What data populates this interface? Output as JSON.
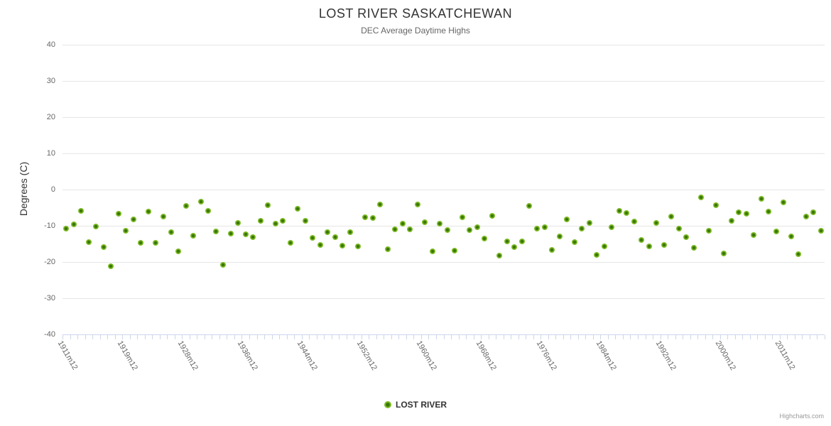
{
  "credit": "Highcharts.com",
  "colors": {
    "marker_outer": "#7ebc27",
    "marker_core": "#3a7606",
    "gridline": "#e6e6e6",
    "axis_line": "#ccd6eb",
    "title_text": "#333333",
    "label_text": "#666666",
    "credit_text": "#999999",
    "background": "#ffffff"
  },
  "chart_data": {
    "type": "scatter",
    "title": "LOST RIVER SASKATCHEWAN",
    "subtitle": "DEC Average Daytime Highs",
    "xlabel": "",
    "ylabel": "Degrees (C)",
    "ylim": [
      -40,
      40
    ],
    "y_ticks": [
      40,
      30,
      20,
      10,
      0,
      -10,
      -20,
      -30,
      -40
    ],
    "grid": true,
    "legend_position": "bottom-center",
    "x_tick_labels": [
      {
        "index": 0,
        "label": "1911m12"
      },
      {
        "index": 8,
        "label": "1919m12"
      },
      {
        "index": 16,
        "label": "1928m12"
      },
      {
        "index": 24,
        "label": "1936m12"
      },
      {
        "index": 32,
        "label": "1944m12"
      },
      {
        "index": 40,
        "label": "1952m12"
      },
      {
        "index": 48,
        "label": "1960m12"
      },
      {
        "index": 56,
        "label": "1968m12"
      },
      {
        "index": 64,
        "label": "1976m12"
      },
      {
        "index": 72,
        "label": "1984m12"
      },
      {
        "index": 80,
        "label": "1992m12"
      },
      {
        "index": 88,
        "label": "2000m12"
      },
      {
        "index": 96,
        "label": "2011m12"
      }
    ],
    "series": [
      {
        "name": "LOST RIVER",
        "color": "#7ebc27",
        "values": [
          -10.8,
          -9.6,
          -5.9,
          -14.6,
          -10.2,
          -15.8,
          -21.2,
          -6.7,
          -11.4,
          -8.2,
          -14.7,
          -6.0,
          -14.8,
          -7.5,
          -11.8,
          -17.0,
          -4.5,
          -12.7,
          -3.3,
          -5.8,
          -11.6,
          -20.7,
          -12.1,
          -9.2,
          -12.4,
          -13.2,
          -8.6,
          -4.4,
          -9.4,
          -8.6,
          -14.8,
          -5.3,
          -8.7,
          -13.4,
          -15.2,
          -11.7,
          -13.2,
          -15.4,
          -11.8,
          -15.6,
          -7.6,
          -7.9,
          -4.1,
          -16.5,
          -11.0,
          -9.5,
          -11.0,
          -4.1,
          -9.0,
          -17.1,
          -9.4,
          -11.2,
          -16.8,
          -7.6,
          -11.2,
          -10.4,
          -13.6,
          -7.3,
          -18.2,
          -14.3,
          -15.8,
          -14.3,
          -4.5,
          -10.8,
          -10.3,
          -16.7,
          -12.9,
          -8.2,
          -14.5,
          -10.8,
          -9.2,
          -18.0,
          -15.6,
          -10.4,
          -5.9,
          -6.5,
          -8.8,
          -13.9,
          -15.7,
          -9.2,
          -15.3,
          -7.5,
          -10.8,
          -13.1,
          -16.1,
          -2.2,
          -11.3,
          -4.3,
          -17.7,
          -8.7,
          -6.2,
          -6.6,
          -12.6,
          -2.6,
          -6.0,
          -11.6,
          -3.5,
          -13.0,
          -17.8,
          -7.5,
          -6.3,
          -11.4
        ]
      }
    ]
  }
}
